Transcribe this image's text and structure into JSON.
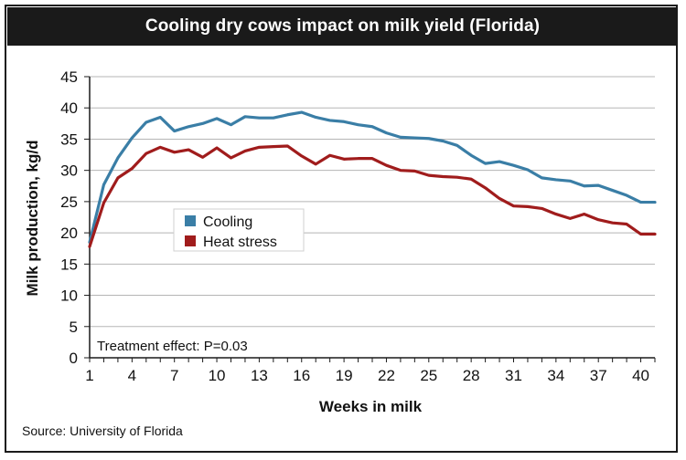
{
  "title": "Cooling dry cows impact on milk yield (Florida)",
  "source": "Source: University of Florida",
  "chart_data": {
    "type": "line",
    "title": "Cooling dry cows impact on milk yield (Florida)",
    "xlabel": "Weeks in milk",
    "ylabel": "Milk production, kg/d",
    "xlim": [
      1,
      41
    ],
    "ylim": [
      0,
      45
    ],
    "xticks": [
      1,
      4,
      7,
      10,
      13,
      16,
      19,
      22,
      25,
      28,
      31,
      34,
      37,
      40
    ],
    "yticks": [
      0,
      5,
      10,
      15,
      20,
      25,
      30,
      35,
      40,
      45
    ],
    "grid": "horizontal",
    "legend_position": "left-center",
    "annotation": "Treatment effect: P=0.03",
    "x": [
      1,
      2,
      3,
      4,
      5,
      6,
      7,
      8,
      9,
      10,
      11,
      12,
      13,
      14,
      15,
      16,
      17,
      18,
      19,
      20,
      21,
      22,
      23,
      24,
      25,
      26,
      27,
      28,
      29,
      30,
      31,
      32,
      33,
      34,
      35,
      36,
      37,
      38,
      39,
      40,
      41
    ],
    "series": [
      {
        "name": "Cooling",
        "color": "#3a7ea6",
        "values": [
          18.5,
          27.7,
          32.0,
          35.2,
          37.7,
          38.5,
          36.3,
          37.0,
          37.5,
          38.3,
          37.3,
          38.6,
          38.4,
          38.4,
          38.9,
          39.3,
          38.5,
          38.0,
          37.8,
          37.3,
          37.0,
          36.0,
          35.3,
          35.2,
          35.1,
          34.7,
          34.0,
          32.4,
          31.1,
          31.4,
          30.8,
          30.1,
          28.8,
          28.5,
          28.3,
          27.5,
          27.6,
          26.8,
          26.0,
          24.9,
          24.9
        ]
      },
      {
        "name": "Heat stress",
        "color": "#a01c1c",
        "values": [
          17.8,
          24.8,
          28.8,
          30.3,
          32.7,
          33.7,
          32.9,
          33.3,
          32.1,
          33.6,
          32.0,
          33.1,
          33.7,
          33.8,
          33.9,
          32.3,
          31.0,
          32.4,
          31.8,
          31.9,
          31.9,
          30.8,
          30.0,
          29.9,
          29.2,
          29.0,
          28.9,
          28.6,
          27.2,
          25.5,
          24.3,
          24.2,
          23.9,
          23.0,
          22.3,
          23.0,
          22.1,
          21.6,
          21.4,
          19.8,
          19.8
        ]
      }
    ]
  },
  "colors": {
    "axis": "#1a1a1a",
    "grid": "#b5b5b5",
    "title_bg": "#1a1a1a"
  }
}
